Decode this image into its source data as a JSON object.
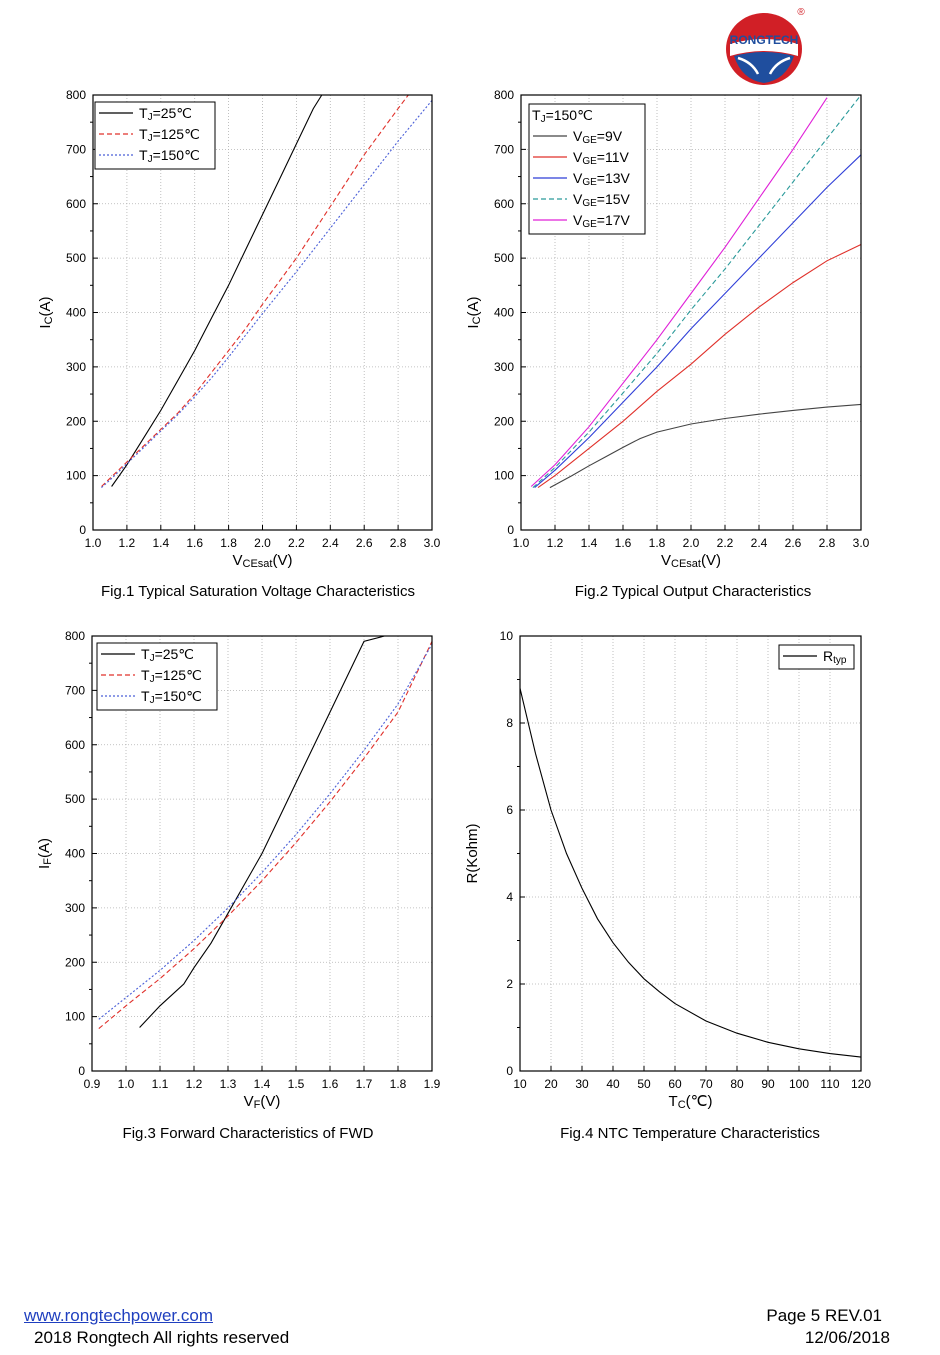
{
  "logo": {
    "brand": "RONGTECH",
    "mark": "®",
    "colors": {
      "red": "#d11f26",
      "blue": "#1f4e9e"
    }
  },
  "charts": [
    {
      "caption": "Fig.1 Typical Saturation Voltage Characteristics",
      "chart_data": {
        "type": "line",
        "xlim": [
          1.0,
          3.0
        ],
        "ylim": [
          0,
          800
        ],
        "xticks": [
          "1.0",
          "1.2",
          "1.4",
          "1.6",
          "1.8",
          "2.0",
          "2.2",
          "2.4",
          "2.6",
          "2.8",
          "3.0"
        ],
        "yticks": [
          "0",
          "100",
          "200",
          "300",
          "400",
          "500",
          "600",
          "700",
          "800"
        ],
        "xlabel": {
          "main": "V",
          "sub": "CEsat",
          "suffix": "(V)"
        },
        "ylabel": {
          "main": "I",
          "sub": "C",
          "suffix": "(A)"
        },
        "grid": true,
        "legend": {
          "position": "top-left"
        },
        "series": [
          {
            "name": "TJ=25℃",
            "color": "#000000",
            "dash": "solid",
            "points": [
              [
                1.11,
                80
              ],
              [
                1.2,
                120
              ],
              [
                1.3,
                170
              ],
              [
                1.4,
                220
              ],
              [
                1.5,
                275
              ],
              [
                1.6,
                330
              ],
              [
                1.7,
                390
              ],
              [
                1.8,
                450
              ],
              [
                1.9,
                515
              ],
              [
                2.0,
                580
              ],
              [
                2.1,
                645
              ],
              [
                2.2,
                710
              ],
              [
                2.3,
                775
              ],
              [
                2.35,
                800
              ]
            ]
          },
          {
            "name": "TJ=125℃",
            "color": "#e0302a",
            "dash": "dashed",
            "points": [
              [
                1.05,
                80
              ],
              [
                1.1,
                95
              ],
              [
                1.2,
                125
              ],
              [
                1.3,
                155
              ],
              [
                1.4,
                185
              ],
              [
                1.5,
                215
              ],
              [
                1.6,
                250
              ],
              [
                1.7,
                290
              ],
              [
                1.8,
                330
              ],
              [
                1.9,
                370
              ],
              [
                2.0,
                415
              ],
              [
                2.2,
                500
              ],
              [
                2.4,
                595
              ],
              [
                2.6,
                690
              ],
              [
                2.8,
                775
              ],
              [
                2.86,
                800
              ]
            ]
          },
          {
            "name": "TJ=150℃",
            "color": "#4a5fd8",
            "dash": "dotted",
            "points": [
              [
                1.05,
                78
              ],
              [
                1.1,
                92
              ],
              [
                1.2,
                122
              ],
              [
                1.3,
                152
              ],
              [
                1.4,
                182
              ],
              [
                1.5,
                212
              ],
              [
                1.6,
                245
              ],
              [
                1.7,
                280
              ],
              [
                1.8,
                318
              ],
              [
                1.9,
                358
              ],
              [
                2.0,
                398
              ],
              [
                2.2,
                475
              ],
              [
                2.4,
                555
              ],
              [
                2.6,
                635
              ],
              [
                2.8,
                715
              ],
              [
                3.0,
                790
              ]
            ]
          }
        ]
      }
    },
    {
      "caption": "Fig.2 Typical Output Characteristics",
      "chart_data": {
        "type": "line",
        "xlim": [
          1.0,
          3.0
        ],
        "ylim": [
          0,
          800
        ],
        "xticks": [
          "1.0",
          "1.2",
          "1.4",
          "1.6",
          "1.8",
          "2.0",
          "2.2",
          "2.4",
          "2.6",
          "2.8",
          "3.0"
        ],
        "yticks": [
          "0",
          "100",
          "200",
          "300",
          "400",
          "500",
          "600",
          "700",
          "800"
        ],
        "xlabel": {
          "main": "V",
          "sub": "CEsat",
          "suffix": "(V)"
        },
        "ylabel": {
          "main": "I",
          "sub": "C",
          "suffix": "(A)"
        },
        "grid": true,
        "legend": {
          "position": "top-left",
          "title": "TJ=150℃"
        },
        "series": [
          {
            "name": "VGE=9V",
            "color": "#444444",
            "dash": "solid",
            "points": [
              [
                1.17,
                78
              ],
              [
                1.3,
                100
              ],
              [
                1.4,
                118
              ],
              [
                1.5,
                135
              ],
              [
                1.6,
                152
              ],
              [
                1.7,
                168
              ],
              [
                1.8,
                180
              ],
              [
                2.0,
                195
              ],
              [
                2.2,
                205
              ],
              [
                2.4,
                213
              ],
              [
                2.6,
                220
              ],
              [
                2.8,
                226
              ],
              [
                3.0,
                231
              ]
            ]
          },
          {
            "name": "VGE=11V",
            "color": "#e0302a",
            "dash": "solid",
            "points": [
              [
                1.1,
                78
              ],
              [
                1.2,
                100
              ],
              [
                1.4,
                150
              ],
              [
                1.6,
                200
              ],
              [
                1.8,
                255
              ],
              [
                2.0,
                305
              ],
              [
                2.2,
                360
              ],
              [
                2.4,
                410
              ],
              [
                2.6,
                455
              ],
              [
                2.8,
                495
              ],
              [
                3.0,
                525
              ]
            ]
          },
          {
            "name": "VGE=13V",
            "color": "#2f3fd8",
            "dash": "solid",
            "points": [
              [
                1.08,
                78
              ],
              [
                1.2,
                110
              ],
              [
                1.4,
                170
              ],
              [
                1.6,
                235
              ],
              [
                1.8,
                300
              ],
              [
                2.0,
                370
              ],
              [
                2.2,
                435
              ],
              [
                2.4,
                500
              ],
              [
                2.6,
                565
              ],
              [
                2.8,
                630
              ],
              [
                3.0,
                690
              ]
            ]
          },
          {
            "name": "VGE=15V",
            "color": "#2a9a9a",
            "dash": "dashed",
            "points": [
              [
                1.07,
                78
              ],
              [
                1.2,
                115
              ],
              [
                1.4,
                180
              ],
              [
                1.6,
                252
              ],
              [
                1.8,
                325
              ],
              [
                2.0,
                405
              ],
              [
                2.2,
                480
              ],
              [
                2.4,
                560
              ],
              [
                2.6,
                640
              ],
              [
                2.8,
                720
              ],
              [
                3.0,
                800
              ]
            ]
          },
          {
            "name": "VGE=17V",
            "color": "#e020d8",
            "dash": "solid",
            "points": [
              [
                1.06,
                80
              ],
              [
                1.2,
                120
              ],
              [
                1.4,
                190
              ],
              [
                1.6,
                270
              ],
              [
                1.8,
                350
              ],
              [
                2.0,
                435
              ],
              [
                2.2,
                520
              ],
              [
                2.4,
                610
              ],
              [
                2.6,
                700
              ],
              [
                2.8,
                795
              ]
            ]
          }
        ]
      }
    },
    {
      "caption": "Fig.3 Forward Characteristics of FWD",
      "chart_data": {
        "type": "line",
        "xlim": [
          0.9,
          1.9
        ],
        "ylim": [
          0,
          800
        ],
        "xticks": [
          "0.9",
          "1.0",
          "1.1",
          "1.2",
          "1.3",
          "1.4",
          "1.5",
          "1.6",
          "1.7",
          "1.8",
          "1.9"
        ],
        "yticks": [
          "0",
          "100",
          "200",
          "300",
          "400",
          "500",
          "600",
          "700",
          "800"
        ],
        "xlabel": {
          "main": "V",
          "sub": "F",
          "suffix": "(V)"
        },
        "ylabel": {
          "main": "I",
          "sub": "F",
          "suffix": "(A)"
        },
        "grid": true,
        "legend": {
          "position": "top-left"
        },
        "series": [
          {
            "name": "TJ=25℃",
            "color": "#000000",
            "dash": "solid",
            "points": [
              [
                1.04,
                80
              ],
              [
                1.1,
                120
              ],
              [
                1.17,
                160
              ],
              [
                1.2,
                190
              ],
              [
                1.25,
                235
              ],
              [
                1.3,
                290
              ],
              [
                1.35,
                345
              ],
              [
                1.4,
                400
              ],
              [
                1.45,
                465
              ],
              [
                1.5,
                530
              ],
              [
                1.55,
                595
              ],
              [
                1.6,
                660
              ],
              [
                1.65,
                725
              ],
              [
                1.7,
                790
              ],
              [
                1.76,
                800
              ]
            ]
          },
          {
            "name": "TJ=125℃",
            "color": "#e0302a",
            "dash": "dashed",
            "points": [
              [
                0.92,
                78
              ],
              [
                1.0,
                120
              ],
              [
                1.1,
                170
              ],
              [
                1.2,
                225
              ],
              [
                1.3,
                285
              ],
              [
                1.4,
                350
              ],
              [
                1.5,
                420
              ],
              [
                1.6,
                495
              ],
              [
                1.7,
                575
              ],
              [
                1.8,
                660
              ],
              [
                1.9,
                790
              ]
            ]
          },
          {
            "name": "TJ=150℃",
            "color": "#4a5fd8",
            "dash": "dotted",
            "points": [
              [
                0.92,
                95
              ],
              [
                1.0,
                135
              ],
              [
                1.1,
                185
              ],
              [
                1.2,
                240
              ],
              [
                1.3,
                300
              ],
              [
                1.4,
                365
              ],
              [
                1.5,
                435
              ],
              [
                1.6,
                510
              ],
              [
                1.7,
                590
              ],
              [
                1.8,
                675
              ],
              [
                1.9,
                785
              ]
            ]
          }
        ]
      }
    },
    {
      "caption": "Fig.4 NTC Temperature Characteristics",
      "chart_data": {
        "type": "line",
        "xlim": [
          10,
          120
        ],
        "ylim": [
          0,
          10
        ],
        "xticks": [
          "10",
          "20",
          "30",
          "40",
          "50",
          "60",
          "70",
          "80",
          "90",
          "100",
          "110",
          "120"
        ],
        "yticks": [
          "0",
          "2",
          "4",
          "6",
          "8",
          "10"
        ],
        "xlabel": {
          "main": "T",
          "sub": "C",
          "suffix": "(℃)"
        },
        "ylabel": {
          "main": "R(Kohm)",
          "sub": "",
          "suffix": ""
        },
        "grid": true,
        "legend": {
          "position": "top-right"
        },
        "series": [
          {
            "name": "Rtyp",
            "color": "#000000",
            "dash": "solid",
            "points": [
              [
                10,
                8.8
              ],
              [
                15,
                7.3
              ],
              [
                20,
                6.0
              ],
              [
                25,
                5.0
              ],
              [
                30,
                4.2
              ],
              [
                35,
                3.5
              ],
              [
                40,
                2.95
              ],
              [
                45,
                2.5
              ],
              [
                50,
                2.12
              ],
              [
                55,
                1.82
              ],
              [
                60,
                1.55
              ],
              [
                70,
                1.15
              ],
              [
                80,
                0.87
              ],
              [
                90,
                0.66
              ],
              [
                100,
                0.51
              ],
              [
                110,
                0.4
              ],
              [
                120,
                0.32
              ]
            ]
          }
        ]
      }
    }
  ],
  "footer": {
    "website": "www.rongtechpower.com",
    "copyright": "2018 Rongtech All rights reserved",
    "page": "Page 5  REV.01",
    "date": "12/06/2018"
  }
}
